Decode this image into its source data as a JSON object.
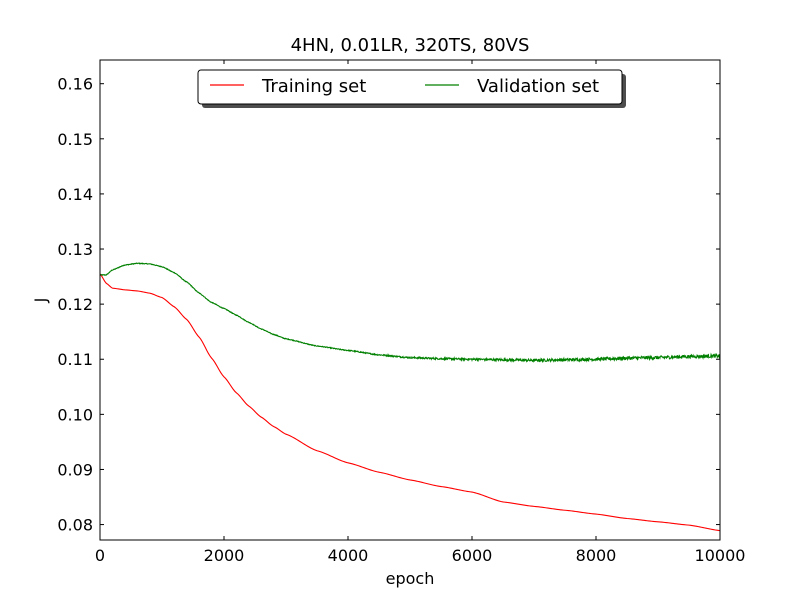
{
  "chart_data": {
    "type": "line",
    "title": "4HN, 0.01LR, 320TS, 80VS",
    "xlabel": "epoch",
    "ylabel": "J",
    "xlim": [
      0,
      10000
    ],
    "ylim": [
      0.0772,
      0.1643
    ],
    "xticks": [
      0,
      2000,
      4000,
      6000,
      8000,
      10000
    ],
    "xtick_labels": [
      "0",
      "2000",
      "4000",
      "6000",
      "8000",
      "10000"
    ],
    "yticks": [
      0.08,
      0.09,
      0.1,
      0.11,
      0.12,
      0.13,
      0.14,
      0.15,
      0.16
    ],
    "ytick_labels": [
      "0.08",
      "0.09",
      "0.10",
      "0.11",
      "0.12",
      "0.13",
      "0.14",
      "0.15",
      "0.16"
    ],
    "grid": false,
    "legend": {
      "placement": "upper center",
      "ncol": 2,
      "shadow": true
    },
    "x": [
      0,
      100,
      200,
      400,
      600,
      800,
      1000,
      1200,
      1400,
      1600,
      1800,
      2000,
      2200,
      2400,
      2600,
      2800,
      3000,
      3500,
      4000,
      4500,
      5000,
      5500,
      6000,
      6500,
      7000,
      7500,
      8000,
      8500,
      9000,
      9500,
      10000
    ],
    "series": [
      {
        "name": "Training set",
        "color": "#ff0000",
        "noise": 0,
        "values": [
          0.1255,
          0.1238,
          0.1229,
          0.1226,
          0.1224,
          0.122,
          0.1212,
          0.1195,
          0.1172,
          0.114,
          0.1102,
          0.1068,
          0.1039,
          0.1015,
          0.0995,
          0.0978,
          0.0964,
          0.0934,
          0.0912,
          0.0895,
          0.0881,
          0.0869,
          0.0859,
          0.0841,
          0.0833,
          0.0826,
          0.0819,
          0.0811,
          0.0805,
          0.0799,
          0.0789
        ]
      },
      {
        "name": "Validation set",
        "color": "#008000",
        "noise": 0.00025,
        "values": [
          0.1253,
          0.1253,
          0.1262,
          0.1271,
          0.1274,
          0.1273,
          0.1268,
          0.1257,
          0.124,
          0.122,
          0.1203,
          0.1192,
          0.118,
          0.1167,
          0.1155,
          0.1145,
          0.1137,
          0.1124,
          0.1116,
          0.1108,
          0.1103,
          0.1101,
          0.11,
          0.1099,
          0.1098,
          0.1099,
          0.11,
          0.1102,
          0.1103,
          0.1105,
          0.1106
        ]
      }
    ]
  }
}
